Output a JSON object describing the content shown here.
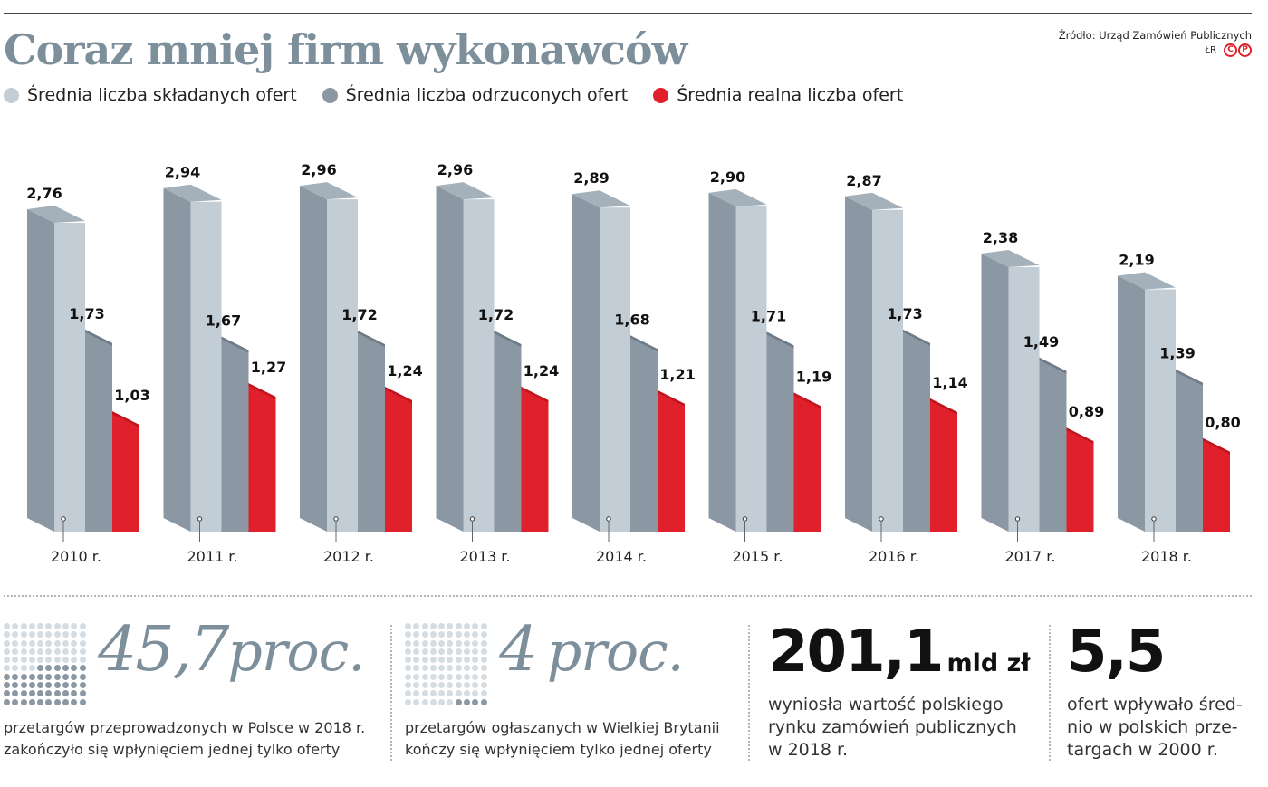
{
  "header": {
    "title": "Coraz mniej firm wykonawców",
    "source": "Źródło: Urząd Zamówień Publicznych",
    "logo_lr": "ŁR",
    "logo_c": "C",
    "logo_p": "P"
  },
  "colors": {
    "series_submitted": "#c3cdd5",
    "series_rejected": "#8b98a3",
    "series_real": "#e0202a",
    "title_gray": "#7e8f9c"
  },
  "chart_data": {
    "type": "bar",
    "title": "Coraz mniej firm wykonawców",
    "categories": [
      "2010 r.",
      "2011 r.",
      "2012 r.",
      "2013 r.",
      "2014 r.",
      "2015 r.",
      "2016 r.",
      "2017 r.",
      "2018 r."
    ],
    "series": [
      {
        "name": "Średnia liczba składanych ofert",
        "color": "#c3cdd5",
        "values": [
          2.76,
          2.94,
          2.96,
          2.96,
          2.89,
          2.9,
          2.87,
          2.38,
          2.19
        ]
      },
      {
        "name": "Średnia liczba odrzuconych ofert",
        "color": "#8b98a3",
        "values": [
          1.73,
          1.67,
          1.72,
          1.72,
          1.68,
          1.71,
          1.73,
          1.49,
          1.39
        ]
      },
      {
        "name": "Średnia realna liczba ofert",
        "color": "#e0202a",
        "values": [
          1.03,
          1.27,
          1.24,
          1.24,
          1.21,
          1.19,
          1.14,
          0.89,
          0.8
        ]
      }
    ],
    "labels": [
      [
        "2,76",
        "2,94",
        "2,96",
        "2,96",
        "2,89",
        "2,90",
        "2,87",
        "2,38",
        "2,19"
      ],
      [
        "1,73",
        "1,67",
        "1,72",
        "1,72",
        "1,68",
        "1,71",
        "1,73",
        "1,49",
        "1,39"
      ],
      [
        "1,03",
        "1,27",
        "1,24",
        "1,24",
        "1,21",
        "1,19",
        "1,14",
        "0,89",
        "0,80"
      ]
    ],
    "ylim": [
      0,
      3
    ],
    "grid": false,
    "legend": "top-left",
    "style": "3d"
  },
  "stats": [
    {
      "value": "45,7",
      "unit": "proc.",
      "text": [
        "przetargów przeprowadzonych w Polsce w 2018 r.",
        "zakończyło się wpłynięciem jednej tylko oferty"
      ],
      "dots_total": 100,
      "dots_highlight": 46
    },
    {
      "value": "4",
      "unit": "proc.",
      "text": [
        "przetargów ogłaszanych w Wielkiej Brytanii",
        "kończy się wpłynięciem tylko jednej oferty"
      ],
      "dots_total": 100,
      "dots_highlight": 4
    },
    {
      "value": "201,1",
      "unit": "mld zł",
      "text": [
        "wyniosła wartość polskiego",
        "rynku zamówień publicznych",
        "w 2018 r."
      ]
    },
    {
      "value": "5,5",
      "unit": "",
      "text": [
        "ofert wpływało śred-",
        "nio w polskich prze-",
        "targach w 2000 r."
      ]
    }
  ]
}
